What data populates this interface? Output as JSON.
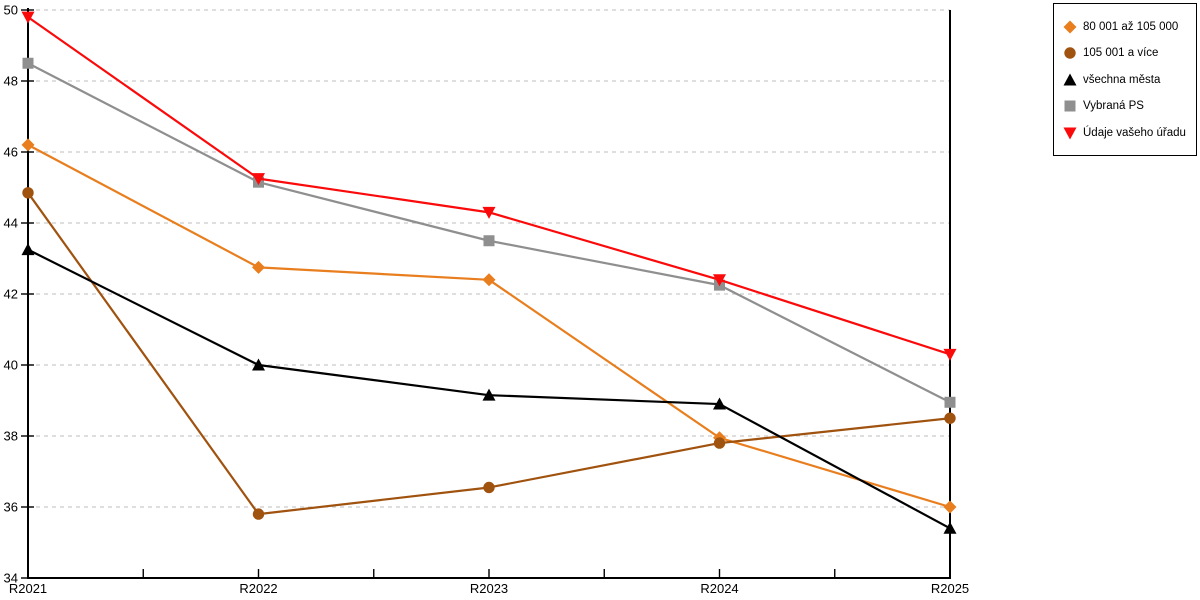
{
  "chart_data": {
    "type": "line",
    "title": "",
    "xlabel": "",
    "ylabel": "",
    "categories": [
      "R2021",
      "R2022",
      "R2023",
      "R2024",
      "R2025"
    ],
    "series": [
      {
        "name": "80 001 až 105 000",
        "color": "#E87E1E",
        "marker": "diamond",
        "values": [
          46.2,
          42.75,
          42.4,
          37.95,
          36.0
        ]
      },
      {
        "name": "105 001 a více",
        "color": "#A0520F",
        "marker": "circle",
        "values": [
          44.85,
          35.8,
          36.55,
          37.8,
          38.5
        ]
      },
      {
        "name": "všechna města",
        "color": "#000000",
        "marker": "triangle-up",
        "values": [
          43.25,
          40.0,
          39.15,
          38.9,
          35.4
        ]
      },
      {
        "name": "Vybraná PS",
        "color": "#8F8F8F",
        "marker": "square",
        "values": [
          48.5,
          45.15,
          43.5,
          42.25,
          38.95
        ]
      },
      {
        "name": "Údaje vašeho úřadu",
        "color": "#FA0A0A",
        "marker": "triangle-down",
        "values": [
          49.8,
          45.25,
          44.3,
          42.4,
          40.3
        ]
      }
    ],
    "ylim": [
      34,
      50
    ],
    "ytick_step": 2,
    "yticks": [
      34,
      36,
      38,
      40,
      42,
      44,
      46,
      48,
      50
    ],
    "grid": "horizontal-dashed",
    "minor_x_ticks_between_categories": true,
    "legend_position": "top-right",
    "colors": {
      "grid": "#C9C9C9",
      "axis": "#000000",
      "background": "#FFFFFF"
    }
  }
}
